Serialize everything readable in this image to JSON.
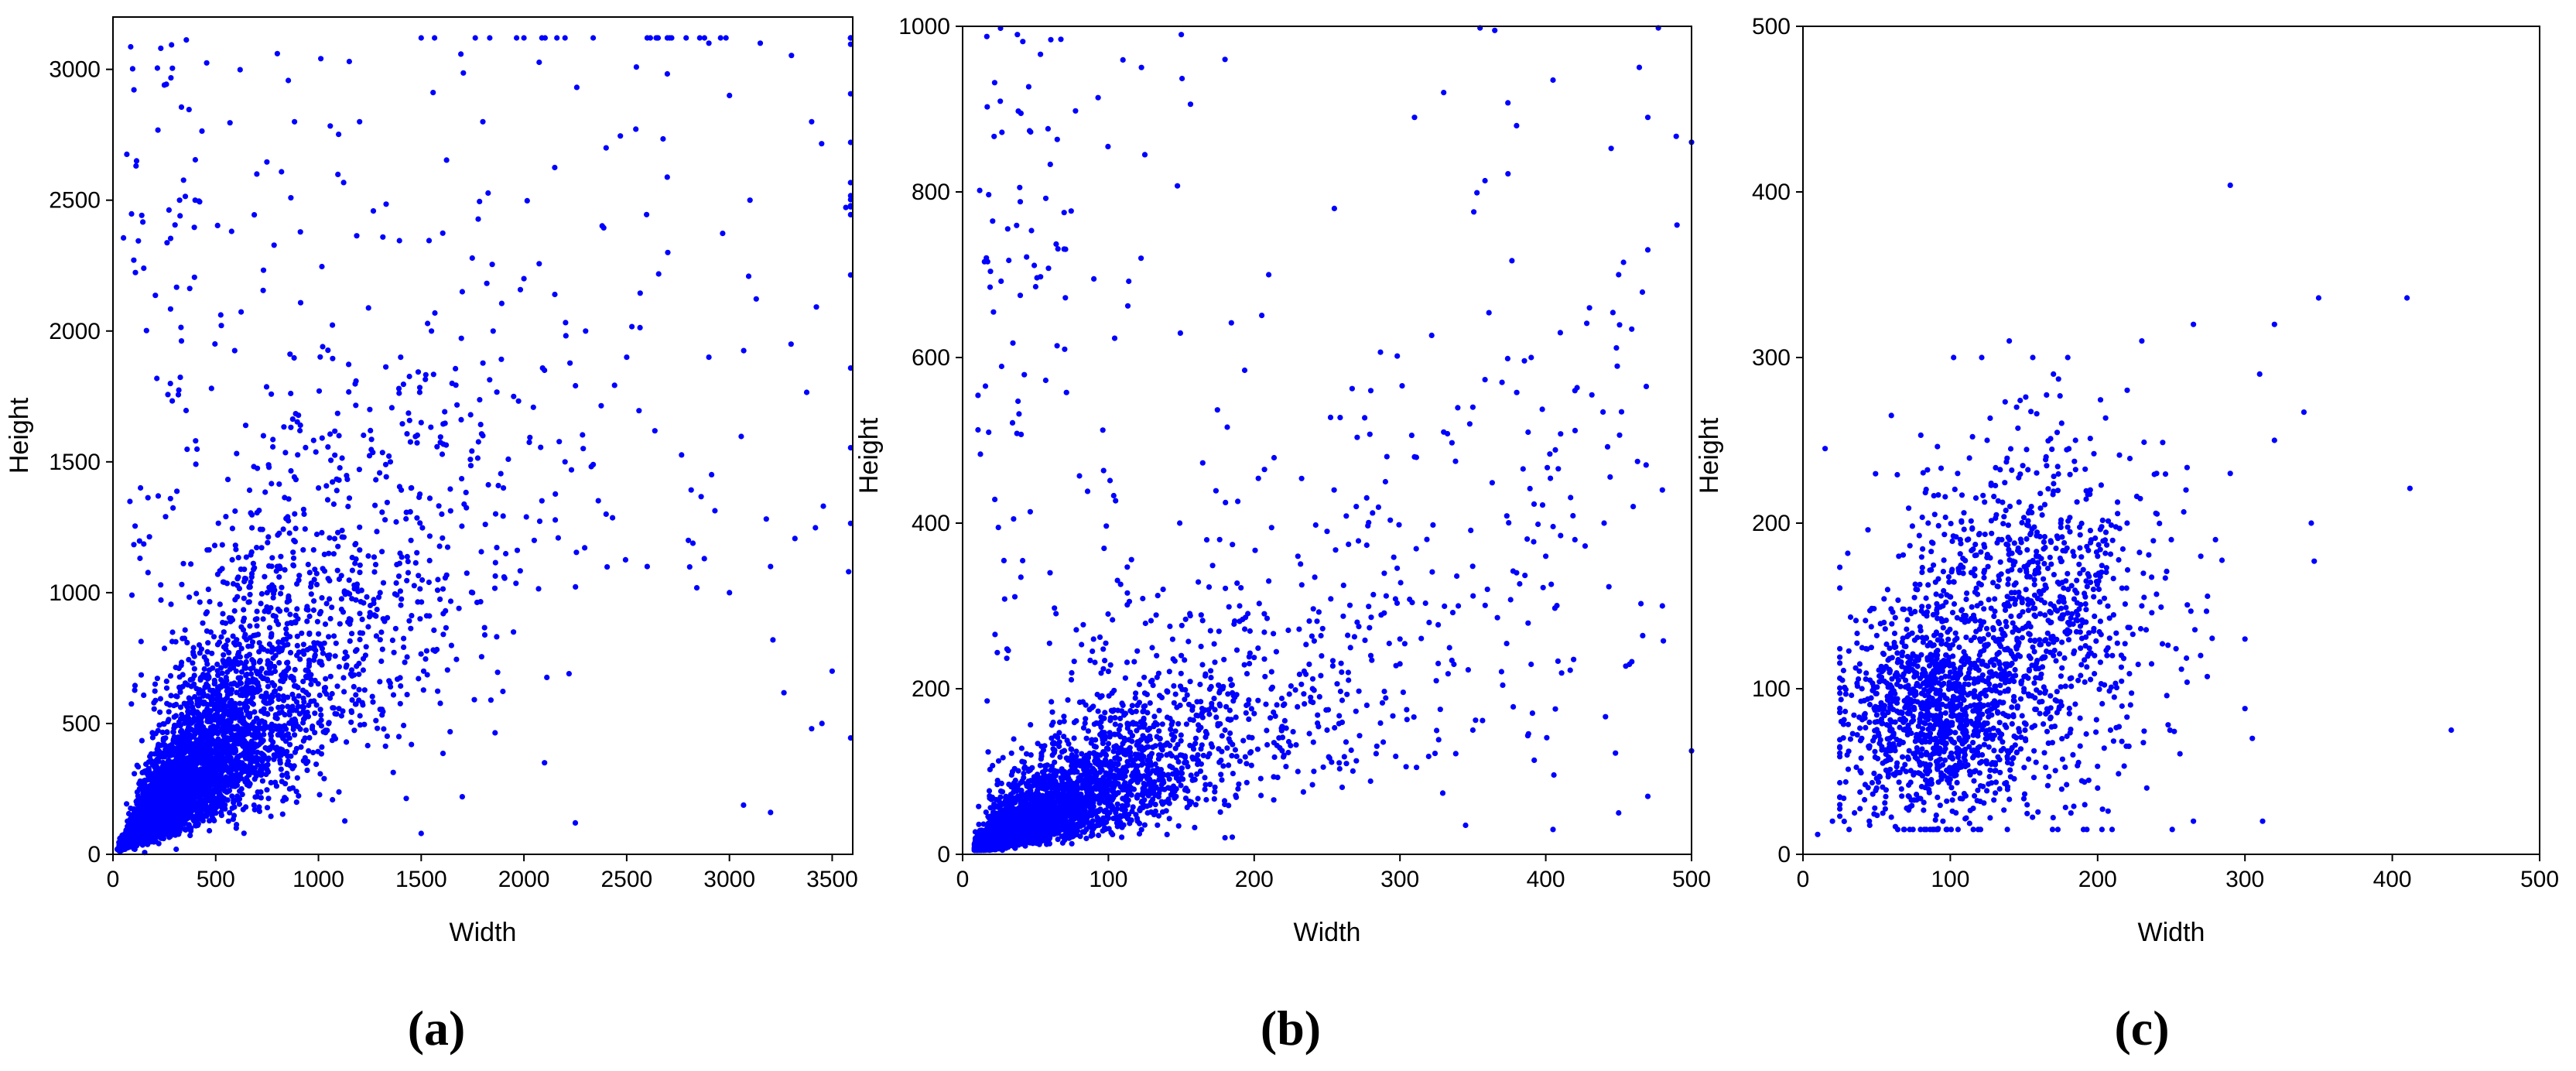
{
  "chart_data": [
    {
      "type": "scatter",
      "panel_label": "(a)",
      "xlabel": "Width",
      "ylabel": "Height",
      "xlim": [
        0,
        3600
      ],
      "ylim": [
        0,
        3200
      ],
      "xticks": [
        "0",
        "500",
        "1000",
        "1500",
        "2000",
        "2500",
        "3000",
        "3500"
      ],
      "yticks": [
        "0",
        "500",
        "1000",
        "1500",
        "2000",
        "2500",
        "3000"
      ],
      "grid": false,
      "marker_color": "#0000ff",
      "point_count_estimate": 5000,
      "distribution": "dense near origin; height roughly 0.7-1.0 x width; widely scattered up to ~3500 width and ~3100 height",
      "points": [
        [
          30,
          20
        ],
        [
          60,
          40
        ],
        [
          80,
          90
        ],
        [
          100,
          60
        ],
        [
          120,
          150
        ],
        [
          150,
          110
        ],
        [
          180,
          200
        ],
        [
          200,
          140
        ],
        [
          220,
          260
        ],
        [
          250,
          180
        ],
        [
          280,
          320
        ],
        [
          300,
          230
        ],
        [
          330,
          380
        ],
        [
          350,
          260
        ],
        [
          380,
          420
        ],
        [
          400,
          300
        ],
        [
          420,
          520
        ],
        [
          450,
          350
        ],
        [
          480,
          600
        ],
        [
          500,
          420
        ],
        [
          520,
          300
        ],
        [
          550,
          650
        ],
        [
          580,
          480
        ],
        [
          600,
          700
        ],
        [
          620,
          550
        ],
        [
          650,
          820
        ],
        [
          680,
          600
        ],
        [
          700,
          900
        ],
        [
          720,
          680
        ],
        [
          750,
          1000
        ],
        [
          780,
          750
        ],
        [
          800,
          1100
        ],
        [
          830,
          820
        ],
        [
          850,
          600
        ],
        [
          880,
          1200
        ],
        [
          900,
          900
        ],
        [
          930,
          1300
        ],
        [
          950,
          700
        ],
        [
          980,
          1050
        ],
        [
          1000,
          1400
        ],
        [
          1050,
          1150
        ],
        [
          1100,
          1600
        ],
        [
          1150,
          900
        ],
        [
          1200,
          1250
        ],
        [
          1250,
          1700
        ],
        [
          1300,
          1000
        ],
        [
          1350,
          1500
        ],
        [
          1400,
          1900
        ],
        [
          1450,
          1200
        ],
        [
          1500,
          1650
        ],
        [
          1550,
          2000
        ],
        [
          1600,
          1300
        ],
        [
          1650,
          1800
        ],
        [
          1700,
          2150
        ],
        [
          1750,
          1000
        ],
        [
          1800,
          1600
        ],
        [
          1850,
          2000
        ],
        [
          1900,
          1400
        ],
        [
          1950,
          1750
        ],
        [
          2000,
          2200
        ],
        [
          2050,
          1200
        ],
        [
          2100,
          1850
        ],
        [
          2200,
          1500
        ],
        [
          2300,
          2000
        ],
        [
          2400,
          1300
        ],
        [
          2500,
          1900
        ],
        [
          2600,
          1100
        ],
        [
          2700,
          2300
        ],
        [
          2800,
          1200
        ],
        [
          2900,
          1900
        ],
        [
          3000,
          1000
        ],
        [
          3100,
          2500
        ],
        [
          3200,
          1100
        ],
        [
          3300,
          1950
        ],
        [
          3400,
          2800
        ],
        [
          3450,
          500
        ],
        [
          3500,
          700
        ],
        [
          3580,
          1080
        ],
        [
          150,
          2240
        ],
        [
          250,
          2940
        ],
        [
          800,
          3060
        ],
        [
          1150,
          3030
        ],
        [
          1500,
          3120
        ],
        [
          2000,
          3120
        ],
        [
          2200,
          3120
        ],
        [
          2600,
          3120
        ],
        [
          2900,
          3100
        ],
        [
          3150,
          3100
        ],
        [
          400,
          2500
        ],
        [
          700,
          2600
        ],
        [
          1200,
          2800
        ],
        [
          1800,
          2800
        ],
        [
          2400,
          2700
        ],
        [
          3000,
          2900
        ],
        [
          600,
          100
        ],
        [
          1500,
          80
        ],
        [
          2250,
          120
        ],
        [
          3200,
          160
        ],
        [
          3400,
          480
        ],
        [
          2100,
          350
        ],
        [
          1700,
          220
        ]
      ]
    },
    {
      "type": "scatter",
      "panel_label": "(b)",
      "xlabel": "Width",
      "ylabel": "Height",
      "xlim": [
        0,
        500
      ],
      "ylim": [
        0,
        1000
      ],
      "xticks": [
        "0",
        "100",
        "200",
        "300",
        "400",
        "500"
      ],
      "yticks": [
        "0",
        "200",
        "400",
        "600",
        "800",
        "1000"
      ],
      "grid": false,
      "marker_color": "#0000ff",
      "point_count_estimate": 4000,
      "distribution": "very dense near origin; height roughly 0.5-1.0 x width with broad spread; sparse outliers up to 1000 height",
      "points": [
        [
          10,
          10
        ],
        [
          15,
          25
        ],
        [
          20,
          15
        ],
        [
          25,
          40
        ],
        [
          30,
          20
        ],
        [
          35,
          55
        ],
        [
          40,
          30
        ],
        [
          45,
          70
        ],
        [
          50,
          40
        ],
        [
          55,
          85
        ],
        [
          60,
          50
        ],
        [
          65,
          100
        ],
        [
          70,
          60
        ],
        [
          75,
          120
        ],
        [
          80,
          70
        ],
        [
          85,
          140
        ],
        [
          90,
          80
        ],
        [
          95,
          160
        ],
        [
          100,
          90
        ],
        [
          110,
          180
        ],
        [
          120,
          100
        ],
        [
          130,
          210
        ],
        [
          140,
          120
        ],
        [
          150,
          240
        ],
        [
          160,
          140
        ],
        [
          170,
          270
        ],
        [
          180,
          150
        ],
        [
          190,
          300
        ],
        [
          200,
          170
        ],
        [
          210,
          330
        ],
        [
          220,
          180
        ],
        [
          230,
          360
        ],
        [
          240,
          200
        ],
        [
          250,
          390
        ],
        [
          260,
          220
        ],
        [
          270,
          420
        ],
        [
          280,
          240
        ],
        [
          290,
          450
        ],
        [
          300,
          260
        ],
        [
          310,
          480
        ],
        [
          320,
          280
        ],
        [
          330,
          510
        ],
        [
          340,
          300
        ],
        [
          350,
          540
        ],
        [
          360,
          320
        ],
        [
          370,
          570
        ],
        [
          380,
          340
        ],
        [
          390,
          600
        ],
        [
          400,
          360
        ],
        [
          410,
          630
        ],
        [
          420,
          380
        ],
        [
          430,
          660
        ],
        [
          440,
          400
        ],
        [
          450,
          700
        ],
        [
          460,
          420
        ],
        [
          470,
          730
        ],
        [
          480,
          440
        ],
        [
          490,
          760
        ],
        [
          500,
          860
        ],
        [
          150,
          990
        ],
        [
          365,
          995
        ],
        [
          180,
          960
        ],
        [
          40,
          895
        ],
        [
          125,
          845
        ],
        [
          310,
          890
        ],
        [
          380,
          880
        ],
        [
          405,
          935
        ],
        [
          470,
          890
        ],
        [
          255,
          780
        ],
        [
          330,
          920
        ],
        [
          210,
          700
        ],
        [
          90,
          695
        ],
        [
          70,
          610
        ],
        [
          35,
          405
        ],
        [
          60,
          340
        ],
        [
          280,
          560
        ],
        [
          420,
          560
        ],
        [
          480,
          300
        ],
        [
          350,
          150
        ],
        [
          450,
          50
        ],
        [
          470,
          70
        ],
        [
          500,
          125
        ],
        [
          405,
          30
        ],
        [
          345,
          35
        ],
        [
          180,
          20
        ],
        [
          250,
          150
        ],
        [
          300,
          230
        ],
        [
          230,
          100
        ],
        [
          160,
          60
        ],
        [
          120,
          40
        ]
      ]
    },
    {
      "type": "scatter",
      "panel_label": "(c)",
      "xlabel": "Width",
      "ylabel": "Height",
      "xlim": [
        0,
        500
      ],
      "ylim": [
        0,
        500
      ],
      "xticks": [
        "0",
        "100",
        "200",
        "300",
        "400",
        "500"
      ],
      "yticks": [
        "0",
        "100",
        "200",
        "300",
        "400",
        "500"
      ],
      "grid": false,
      "marker_color": "#0000ff",
      "point_count_estimate": 2000,
      "distribution": "cluster around width 50-250, height 20-300; dense near (80, 80); sparse outliers to width ~440",
      "points": [
        [
          30,
          60
        ],
        [
          40,
          100
        ],
        [
          50,
          40
        ],
        [
          55,
          140
        ],
        [
          60,
          80
        ],
        [
          65,
          180
        ],
        [
          70,
          50
        ],
        [
          75,
          120
        ],
        [
          80,
          90
        ],
        [
          85,
          200
        ],
        [
          90,
          70
        ],
        [
          95,
          150
        ],
        [
          100,
          110
        ],
        [
          105,
          230
        ],
        [
          110,
          60
        ],
        [
          115,
          170
        ],
        [
          120,
          130
        ],
        [
          125,
          250
        ],
        [
          130,
          90
        ],
        [
          135,
          190
        ],
        [
          140,
          150
        ],
        [
          145,
          270
        ],
        [
          150,
          100
        ],
        [
          155,
          210
        ],
        [
          160,
          170
        ],
        [
          165,
          240
        ],
        [
          170,
          120
        ],
        [
          175,
          200
        ],
        [
          180,
          160
        ],
        [
          185,
          250
        ],
        [
          190,
          140
        ],
        [
          195,
          220
        ],
        [
          200,
          180
        ],
        [
          210,
          120
        ],
        [
          220,
          200
        ],
        [
          230,
          150
        ],
        [
          240,
          230
        ],
        [
          250,
          190
        ],
        [
          260,
          220
        ],
        [
          270,
          180
        ],
        [
          280,
          190
        ],
        [
          290,
          230
        ],
        [
          300,
          130
        ],
        [
          310,
          290
        ],
        [
          320,
          320
        ],
        [
          10,
          12
        ],
        [
          15,
          245
        ],
        [
          20,
          20
        ],
        [
          25,
          30
        ],
        [
          35,
          25
        ],
        [
          45,
          20
        ],
        [
          265,
          320
        ],
        [
          290,
          404
        ],
        [
          350,
          336
        ],
        [
          410,
          336
        ],
        [
          412,
          221
        ],
        [
          340,
          267
        ],
        [
          345,
          200
        ],
        [
          347,
          177
        ],
        [
          440,
          75
        ],
        [
          312,
          20
        ],
        [
          265,
          20
        ],
        [
          300,
          88
        ],
        [
          305,
          70
        ],
        [
          320,
          250
        ],
        [
          95,
          20
        ],
        [
          60,
          265
        ],
        [
          140,
          310
        ],
        [
          170,
          290
        ],
        [
          230,
          310
        ],
        [
          200,
          40
        ]
      ]
    }
  ]
}
